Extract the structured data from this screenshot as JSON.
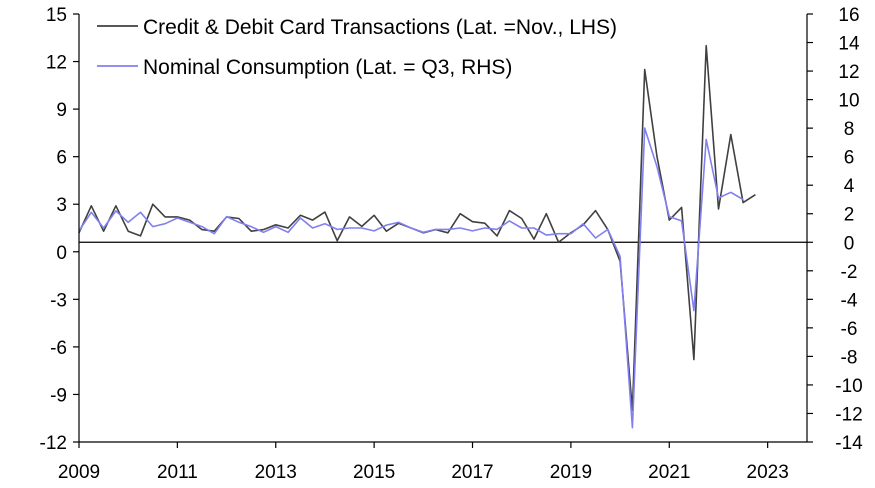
{
  "chart_data": {
    "type": "line",
    "title": "",
    "xlabel": "",
    "ylabel_left": "",
    "ylabel_right": "",
    "x_ticks": [
      "2009",
      "2011",
      "2013",
      "2015",
      "2017",
      "2019",
      "2021",
      "2023"
    ],
    "xlim": [
      2009,
      2023.8
    ],
    "ylim_left": [
      -12,
      15
    ],
    "ylim_right": [
      -14,
      16
    ],
    "y_ticks_left": [
      "15",
      "12",
      "9",
      "6",
      "3",
      "0",
      "-3",
      "-6",
      "-9",
      "-12"
    ],
    "y_ticks_right": [
      "16",
      "14",
      "12",
      "10",
      "8",
      "6",
      "4",
      "2",
      "0",
      "-2",
      "-4",
      "-6",
      "-8",
      "-10",
      "-12",
      "-14"
    ],
    "zero_line": true,
    "legend_position": "top-left",
    "series": [
      {
        "name": "Credit & Debit Card Transactions (Lat. =Nov., LHS)",
        "axis": "left",
        "color": "#404040",
        "points": [
          [
            2009.0,
            1.2
          ],
          [
            2009.25,
            2.9
          ],
          [
            2009.5,
            1.3
          ],
          [
            2009.75,
            2.9
          ],
          [
            2010.0,
            1.3
          ],
          [
            2010.25,
            1.0
          ],
          [
            2010.5,
            3.0
          ],
          [
            2010.75,
            2.2
          ],
          [
            2011.0,
            2.2
          ],
          [
            2011.25,
            2.0
          ],
          [
            2011.5,
            1.4
          ],
          [
            2011.75,
            1.3
          ],
          [
            2012.0,
            2.2
          ],
          [
            2012.25,
            2.1
          ],
          [
            2012.5,
            1.3
          ],
          [
            2012.75,
            1.4
          ],
          [
            2013.0,
            1.7
          ],
          [
            2013.25,
            1.5
          ],
          [
            2013.5,
            2.3
          ],
          [
            2013.75,
            2.0
          ],
          [
            2014.0,
            2.5
          ],
          [
            2014.25,
            0.7
          ],
          [
            2014.5,
            2.2
          ],
          [
            2014.75,
            1.6
          ],
          [
            2015.0,
            2.3
          ],
          [
            2015.25,
            1.3
          ],
          [
            2015.5,
            1.8
          ],
          [
            2015.75,
            1.5
          ],
          [
            2016.0,
            1.2
          ],
          [
            2016.25,
            1.4
          ],
          [
            2016.5,
            1.2
          ],
          [
            2016.75,
            2.4
          ],
          [
            2017.0,
            1.9
          ],
          [
            2017.25,
            1.8
          ],
          [
            2017.5,
            1.0
          ],
          [
            2017.75,
            2.6
          ],
          [
            2018.0,
            2.1
          ],
          [
            2018.25,
            0.8
          ],
          [
            2018.5,
            2.4
          ],
          [
            2018.75,
            0.6
          ],
          [
            2019.0,
            1.2
          ],
          [
            2019.25,
            1.7
          ],
          [
            2019.5,
            2.6
          ],
          [
            2019.75,
            1.4
          ],
          [
            2020.0,
            -0.6
          ],
          [
            2020.25,
            -10.0
          ],
          [
            2020.5,
            11.5
          ],
          [
            2020.75,
            6.0
          ],
          [
            2021.0,
            2.0
          ],
          [
            2021.25,
            2.8
          ],
          [
            2021.5,
            -6.8
          ],
          [
            2021.75,
            13.0
          ],
          [
            2022.0,
            2.7
          ],
          [
            2022.25,
            7.4
          ],
          [
            2022.5,
            3.1
          ],
          [
            2022.75,
            3.6
          ]
        ]
      },
      {
        "name": "Nominal Consumption (Lat. = Q3, RHS)",
        "axis": "right",
        "color": "#8080f0",
        "points": [
          [
            2009.0,
            0.8
          ],
          [
            2009.25,
            2.1
          ],
          [
            2009.5,
            1.0
          ],
          [
            2009.75,
            2.2
          ],
          [
            2010.0,
            1.4
          ],
          [
            2010.25,
            2.1
          ],
          [
            2010.5,
            1.1
          ],
          [
            2010.75,
            1.3
          ],
          [
            2011.0,
            1.7
          ],
          [
            2011.25,
            1.4
          ],
          [
            2011.5,
            1.1
          ],
          [
            2011.75,
            0.6
          ],
          [
            2012.0,
            1.8
          ],
          [
            2012.25,
            1.4
          ],
          [
            2012.5,
            1.1
          ],
          [
            2012.75,
            0.7
          ],
          [
            2013.0,
            1.1
          ],
          [
            2013.25,
            0.7
          ],
          [
            2013.5,
            1.7
          ],
          [
            2013.75,
            1.0
          ],
          [
            2014.0,
            1.3
          ],
          [
            2014.25,
            0.9
          ],
          [
            2014.5,
            1.0
          ],
          [
            2014.75,
            1.0
          ],
          [
            2015.0,
            0.8
          ],
          [
            2015.25,
            1.2
          ],
          [
            2015.5,
            1.4
          ],
          [
            2015.75,
            1.0
          ],
          [
            2016.0,
            0.7
          ],
          [
            2016.25,
            0.9
          ],
          [
            2016.5,
            0.9
          ],
          [
            2016.75,
            1.0
          ],
          [
            2017.0,
            0.8
          ],
          [
            2017.25,
            1.0
          ],
          [
            2017.5,
            0.9
          ],
          [
            2017.75,
            1.5
          ],
          [
            2018.0,
            1.0
          ],
          [
            2018.25,
            1.0
          ],
          [
            2018.5,
            0.5
          ],
          [
            2018.75,
            0.6
          ],
          [
            2019.0,
            0.6
          ],
          [
            2019.25,
            1.3
          ],
          [
            2019.5,
            0.3
          ],
          [
            2019.75,
            0.9
          ],
          [
            2020.0,
            -1.0
          ],
          [
            2020.25,
            -13.0
          ],
          [
            2020.5,
            8.0
          ],
          [
            2020.75,
            5.3
          ],
          [
            2021.0,
            1.8
          ],
          [
            2021.25,
            1.5
          ],
          [
            2021.5,
            -4.8
          ],
          [
            2021.75,
            7.2
          ],
          [
            2022.0,
            3.1
          ],
          [
            2022.25,
            3.5
          ],
          [
            2022.5,
            3.0
          ]
        ]
      }
    ]
  }
}
